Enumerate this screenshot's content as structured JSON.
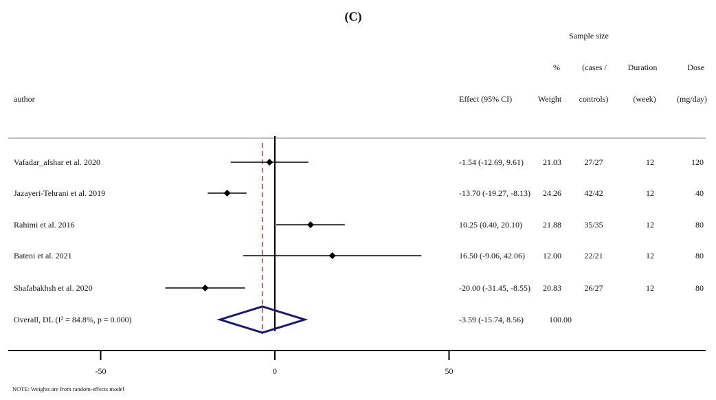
{
  "chart_data": {
    "type": "forest",
    "title": "(C)",
    "headers": {
      "author": "author",
      "effect": "Effect (95% CI)",
      "weight_top": "%",
      "weight": "Weight",
      "sample_top": "Sample size",
      "sample_mid": "(cases /",
      "sample": "controls)",
      "duration_top": "Duration",
      "duration": "(week)",
      "dose_top": "Dose",
      "dose": "(mg/day)"
    },
    "studies": [
      {
        "author": "Vafadar_afshar et al. 2020",
        "effect": -1.54,
        "lo": -12.69,
        "hi": 9.61,
        "effect_text": "-1.54 (-12.69, 9.61)",
        "weight": "21.03",
        "sample": "27/27",
        "duration": "12",
        "dose": "120"
      },
      {
        "author": "Jazayeri-Tehrani et al. 2019",
        "effect": -13.7,
        "lo": -19.27,
        "hi": -8.13,
        "effect_text": "-13.70 (-19.27, -8.13)",
        "weight": "24.26",
        "sample": "42/42",
        "duration": "12",
        "dose": "40"
      },
      {
        "author": "Rahimi et al. 2016",
        "effect": 10.25,
        "lo": 0.4,
        "hi": 20.1,
        "effect_text": "10.25 (0.40, 20.10)",
        "weight": "21.88",
        "sample": "35/35",
        "duration": "12",
        "dose": "80"
      },
      {
        "author": "Bateni et al. 2021",
        "effect": 16.5,
        "lo": -9.06,
        "hi": 42.06,
        "effect_text": "16.50 (-9.06, 42.06)",
        "weight": "12.00",
        "sample": "22/21",
        "duration": "12",
        "dose": "80"
      },
      {
        "author": "Shafabakhsh et al. 2020",
        "effect": -20.0,
        "lo": -31.45,
        "hi": -8.55,
        "effect_text": "-20.00 (-31.45, -8.55)",
        "weight": "20.83",
        "sample": "26/27",
        "duration": "12",
        "dose": "80"
      }
    ],
    "overall": {
      "label": "Overall, DL (I² = 84.8%, p = 0.000)",
      "effect": -3.59,
      "lo": -15.74,
      "hi": 8.56,
      "effect_text": "-3.59 (-15.74, 8.56)",
      "weight": "100.00"
    },
    "x_ticks": [
      -50,
      0,
      50
    ],
    "x_tick_labels": [
      "-50",
      "0",
      "50"
    ],
    "xlim": [
      -77,
      123
    ],
    "note": "NOTE: Weights are from random-effects model",
    "colors": {
      "diamond": "#1a1a6e",
      "overall_line": "#c0303a",
      "ci": "#000000",
      "divider": "#bbbbbb"
    }
  }
}
